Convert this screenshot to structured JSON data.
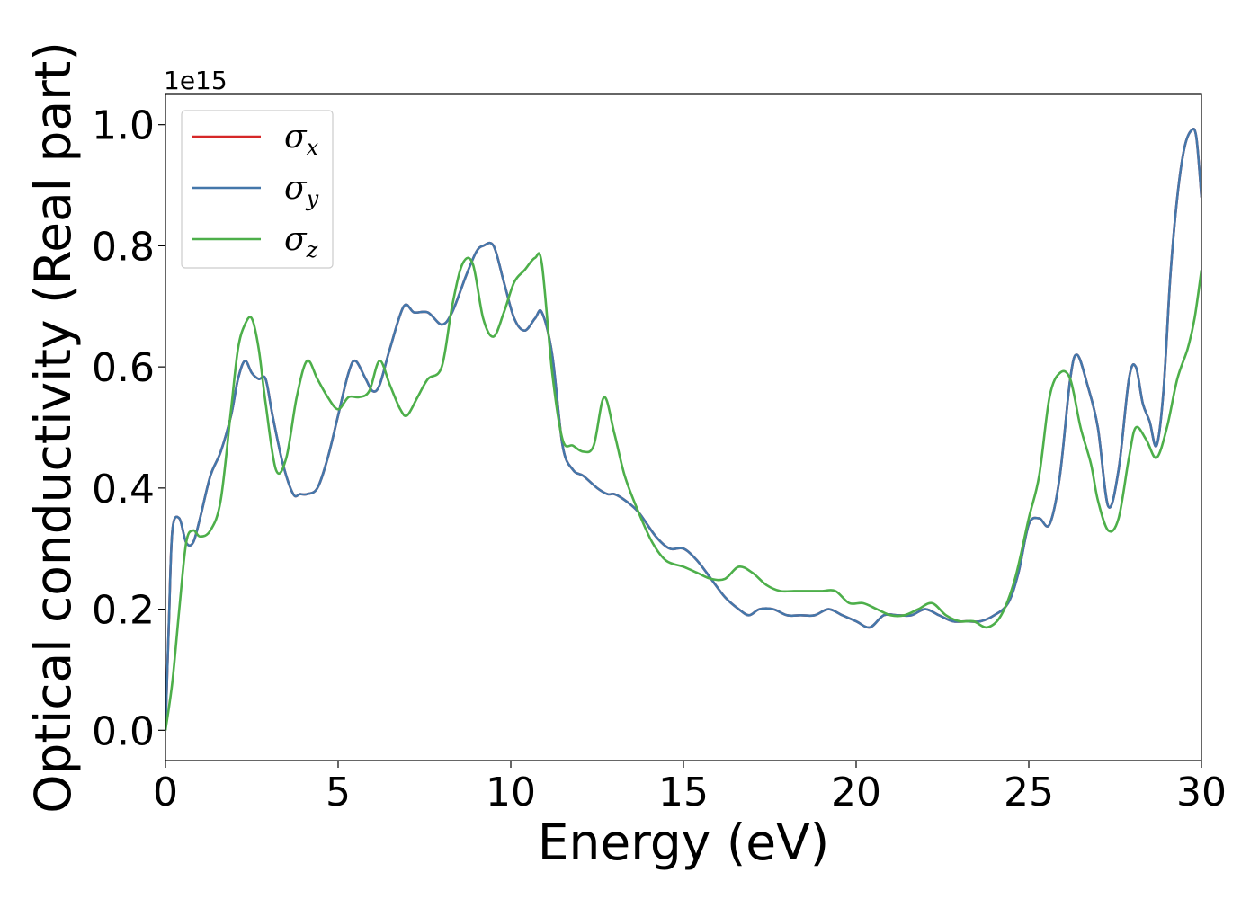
{
  "chart_data": {
    "type": "line",
    "title": "",
    "xlabel": "Energy (eV)",
    "ylabel": "Optical conductivity (Real part)",
    "y_offset_text": "1e15",
    "xlim": [
      0,
      30
    ],
    "ylim": [
      -0.05,
      1.05
    ],
    "xticks": [
      0,
      5,
      10,
      15,
      20,
      25,
      30
    ],
    "xtick_labels": [
      "0",
      "5",
      "10",
      "15",
      "20",
      "25",
      "30"
    ],
    "yticks": [
      0.0,
      0.2,
      0.4,
      0.6,
      0.8,
      1.0
    ],
    "ytick_labels": [
      "0.0",
      "0.2",
      "0.4",
      "0.6",
      "0.8",
      "1.0"
    ],
    "grid": false,
    "legend_position": "top-left",
    "series": [
      {
        "name": "σx",
        "name_base": "σ",
        "name_sub": "x",
        "color": "#d62728",
        "x": [
          0,
          0.1,
          0.2,
          0.4,
          0.6,
          0.8,
          1.0,
          1.3,
          1.6,
          1.9,
          2.1,
          2.3,
          2.5,
          2.7,
          2.9,
          3.1,
          3.4,
          3.7,
          3.9,
          4.1,
          4.4,
          4.7,
          5.0,
          5.3,
          5.5,
          5.8,
          6.0,
          6.2,
          6.5,
          6.9,
          7.2,
          7.6,
          8.0,
          8.3,
          8.7,
          9.0,
          9.2,
          9.5,
          9.8,
          10.1,
          10.4,
          10.7,
          10.9,
          11.2,
          11.5,
          11.8,
          12.1,
          12.5,
          12.8,
          13.0,
          13.3,
          13.7,
          14.2,
          14.6,
          15.0,
          15.4,
          15.8,
          16.2,
          16.6,
          16.9,
          17.2,
          17.6,
          18.0,
          18.4,
          18.8,
          19.2,
          19.6,
          20.0,
          20.4,
          20.8,
          21.2,
          21.6,
          22.0,
          22.4,
          22.8,
          23.2,
          23.6,
          24.0,
          24.4,
          24.7,
          25.0,
          25.3,
          25.6,
          25.9,
          26.2,
          26.4,
          26.7,
          27.0,
          27.3,
          27.6,
          27.9,
          28.1,
          28.3,
          28.5,
          28.7,
          28.9,
          29.1,
          29.3,
          29.5,
          29.7,
          29.85,
          30.0
        ],
        "y": [
          0.0,
          0.18,
          0.33,
          0.35,
          0.31,
          0.31,
          0.35,
          0.42,
          0.46,
          0.52,
          0.58,
          0.61,
          0.59,
          0.58,
          0.58,
          0.52,
          0.44,
          0.39,
          0.39,
          0.39,
          0.4,
          0.45,
          0.52,
          0.59,
          0.61,
          0.58,
          0.56,
          0.57,
          0.63,
          0.7,
          0.69,
          0.69,
          0.67,
          0.69,
          0.75,
          0.79,
          0.8,
          0.8,
          0.74,
          0.68,
          0.66,
          0.68,
          0.69,
          0.62,
          0.47,
          0.43,
          0.42,
          0.4,
          0.39,
          0.39,
          0.38,
          0.36,
          0.32,
          0.3,
          0.3,
          0.28,
          0.25,
          0.22,
          0.2,
          0.19,
          0.2,
          0.2,
          0.19,
          0.19,
          0.19,
          0.2,
          0.19,
          0.18,
          0.17,
          0.19,
          0.19,
          0.19,
          0.2,
          0.19,
          0.18,
          0.18,
          0.18,
          0.19,
          0.21,
          0.26,
          0.34,
          0.35,
          0.34,
          0.42,
          0.58,
          0.62,
          0.57,
          0.5,
          0.37,
          0.43,
          0.58,
          0.6,
          0.54,
          0.51,
          0.47,
          0.56,
          0.75,
          0.88,
          0.96,
          0.99,
          0.98,
          0.88
        ]
      },
      {
        "name": "σy",
        "name_base": "σ",
        "name_sub": "y",
        "color": "#4477aa",
        "x": [
          0,
          0.1,
          0.2,
          0.4,
          0.6,
          0.8,
          1.0,
          1.3,
          1.6,
          1.9,
          2.1,
          2.3,
          2.5,
          2.7,
          2.9,
          3.1,
          3.4,
          3.7,
          3.9,
          4.1,
          4.4,
          4.7,
          5.0,
          5.3,
          5.5,
          5.8,
          6.0,
          6.2,
          6.5,
          6.9,
          7.2,
          7.6,
          8.0,
          8.3,
          8.7,
          9.0,
          9.2,
          9.5,
          9.8,
          10.1,
          10.4,
          10.7,
          10.9,
          11.2,
          11.5,
          11.8,
          12.1,
          12.5,
          12.8,
          13.0,
          13.3,
          13.7,
          14.2,
          14.6,
          15.0,
          15.4,
          15.8,
          16.2,
          16.6,
          16.9,
          17.2,
          17.6,
          18.0,
          18.4,
          18.8,
          19.2,
          19.6,
          20.0,
          20.4,
          20.8,
          21.2,
          21.6,
          22.0,
          22.4,
          22.8,
          23.2,
          23.6,
          24.0,
          24.4,
          24.7,
          25.0,
          25.3,
          25.6,
          25.9,
          26.2,
          26.4,
          26.7,
          27.0,
          27.3,
          27.6,
          27.9,
          28.1,
          28.3,
          28.5,
          28.7,
          28.9,
          29.1,
          29.3,
          29.5,
          29.7,
          29.85,
          30.0
        ],
        "y": [
          0.0,
          0.18,
          0.33,
          0.35,
          0.31,
          0.31,
          0.35,
          0.42,
          0.46,
          0.52,
          0.58,
          0.61,
          0.59,
          0.58,
          0.58,
          0.52,
          0.44,
          0.39,
          0.39,
          0.39,
          0.4,
          0.45,
          0.52,
          0.59,
          0.61,
          0.58,
          0.56,
          0.57,
          0.63,
          0.7,
          0.69,
          0.69,
          0.67,
          0.69,
          0.75,
          0.79,
          0.8,
          0.8,
          0.74,
          0.68,
          0.66,
          0.68,
          0.69,
          0.62,
          0.47,
          0.43,
          0.42,
          0.4,
          0.39,
          0.39,
          0.38,
          0.36,
          0.32,
          0.3,
          0.3,
          0.28,
          0.25,
          0.22,
          0.2,
          0.19,
          0.2,
          0.2,
          0.19,
          0.19,
          0.19,
          0.2,
          0.19,
          0.18,
          0.17,
          0.19,
          0.19,
          0.19,
          0.2,
          0.19,
          0.18,
          0.18,
          0.18,
          0.19,
          0.21,
          0.26,
          0.34,
          0.35,
          0.34,
          0.42,
          0.58,
          0.62,
          0.57,
          0.5,
          0.37,
          0.43,
          0.58,
          0.6,
          0.54,
          0.51,
          0.47,
          0.56,
          0.75,
          0.88,
          0.96,
          0.99,
          0.98,
          0.88
        ]
      },
      {
        "name": "σz",
        "name_base": "σ",
        "name_sub": "z",
        "color": "#4daf4a",
        "x": [
          0,
          0.2,
          0.4,
          0.6,
          0.8,
          1.0,
          1.3,
          1.6,
          1.9,
          2.1,
          2.3,
          2.5,
          2.7,
          2.9,
          3.2,
          3.5,
          3.8,
          4.1,
          4.4,
          4.7,
          5.0,
          5.3,
          5.6,
          5.9,
          6.2,
          6.5,
          6.8,
          7.0,
          7.3,
          7.6,
          8.0,
          8.3,
          8.6,
          8.9,
          9.2,
          9.5,
          9.8,
          10.1,
          10.4,
          10.7,
          10.9,
          11.2,
          11.5,
          11.8,
          12.1,
          12.4,
          12.7,
          13.0,
          13.3,
          13.7,
          14.1,
          14.5,
          15.0,
          15.4,
          15.8,
          16.2,
          16.6,
          17.0,
          17.4,
          17.8,
          18.2,
          18.6,
          19.0,
          19.4,
          19.8,
          20.2,
          20.6,
          21.0,
          21.4,
          21.8,
          22.2,
          22.6,
          23.0,
          23.4,
          23.8,
          24.2,
          24.6,
          25.0,
          25.3,
          25.6,
          25.9,
          26.2,
          26.5,
          26.8,
          27.0,
          27.3,
          27.6,
          27.9,
          28.1,
          28.4,
          28.7,
          29.0,
          29.3,
          29.6,
          29.8,
          30.0
        ],
        "y": [
          0.0,
          0.08,
          0.2,
          0.31,
          0.33,
          0.32,
          0.33,
          0.38,
          0.53,
          0.63,
          0.67,
          0.68,
          0.63,
          0.54,
          0.43,
          0.45,
          0.55,
          0.61,
          0.58,
          0.55,
          0.53,
          0.55,
          0.55,
          0.56,
          0.61,
          0.57,
          0.53,
          0.52,
          0.55,
          0.58,
          0.6,
          0.7,
          0.77,
          0.77,
          0.68,
          0.65,
          0.69,
          0.74,
          0.76,
          0.78,
          0.77,
          0.59,
          0.48,
          0.47,
          0.46,
          0.47,
          0.55,
          0.49,
          0.42,
          0.36,
          0.31,
          0.28,
          0.27,
          0.26,
          0.25,
          0.25,
          0.27,
          0.26,
          0.24,
          0.23,
          0.23,
          0.23,
          0.23,
          0.23,
          0.21,
          0.21,
          0.2,
          0.19,
          0.19,
          0.2,
          0.21,
          0.19,
          0.18,
          0.18,
          0.17,
          0.19,
          0.25,
          0.35,
          0.42,
          0.55,
          0.59,
          0.58,
          0.5,
          0.44,
          0.38,
          0.33,
          0.35,
          0.45,
          0.5,
          0.48,
          0.45,
          0.5,
          0.58,
          0.63,
          0.68,
          0.76
        ]
      }
    ]
  }
}
